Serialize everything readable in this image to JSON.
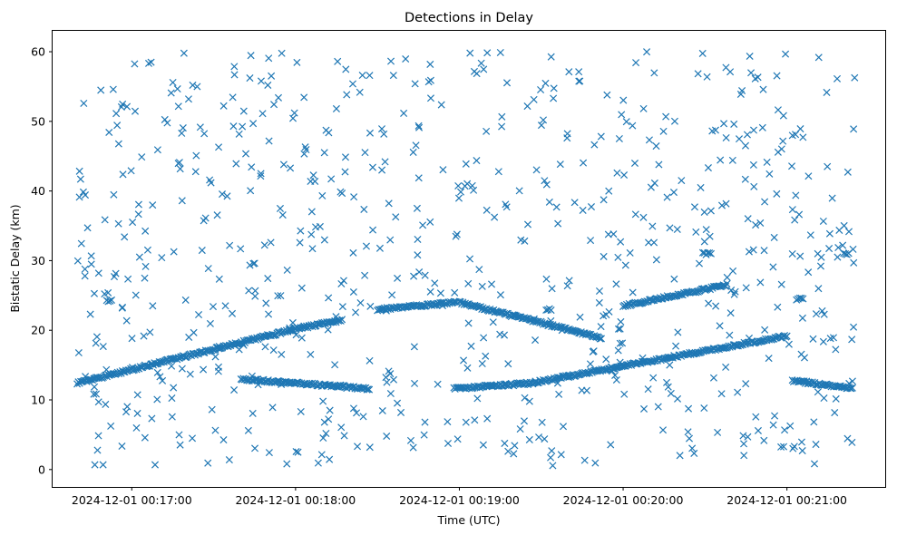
{
  "chart_data": {
    "type": "scatter",
    "title": "Detections in Delay",
    "xlabel": "Time (UTC)",
    "ylabel": "Bistatic Delay (km)",
    "x_ticks": [
      "2024-12-01 00:17:00",
      "2024-12-01 00:18:00",
      "2024-12-01 00:19:00",
      "2024-12-01 00:20:00",
      "2024-12-01 00:21:00"
    ],
    "y_ticks": [
      "0",
      "10",
      "20",
      "30",
      "40",
      "50",
      "60"
    ],
    "xlim": [
      "2024-12-01 00:16:31",
      "2024-12-01 00:21:36"
    ],
    "ylim": [
      -2.5,
      63
    ],
    "marker": "x",
    "color": "#1f77b4",
    "grid": false,
    "tracks": [
      {
        "from": [
          "2024-12-01 00:16:40",
          12.4
        ],
        "to": [
          "2024-12-01 00:17:58",
          20.0
        ]
      },
      {
        "from": [
          "2024-12-01 00:17:58",
          20.0
        ],
        "to": [
          "2024-12-01 00:18:17",
          21.5
        ]
      },
      {
        "from": [
          "2024-12-01 00:17:40",
          13.0
        ],
        "to": [
          "2024-12-01 00:18:27",
          11.6
        ]
      },
      {
        "from": [
          "2024-12-01 00:18:30",
          23.0
        ],
        "to": [
          "2024-12-01 00:18:59",
          24.0
        ]
      },
      {
        "from": [
          "2024-12-01 00:18:58",
          11.6
        ],
        "to": [
          "2024-12-01 00:19:26",
          12.4
        ]
      },
      {
        "from": [
          "2024-12-01 00:19:26",
          12.4
        ],
        "to": [
          "2024-12-01 00:21:00",
          19.2
        ]
      },
      {
        "from": [
          "2024-12-01 00:19:00",
          24.0
        ],
        "to": [
          "2024-12-01 00:19:52",
          18.9
        ]
      },
      {
        "from": [
          "2024-12-01 00:20:00",
          23.5
        ],
        "to": [
          "2024-12-01 00:20:38",
          26.5
        ]
      },
      {
        "from": [
          "2024-12-01 00:21:02",
          12.8
        ],
        "to": [
          "2024-12-01 00:21:24",
          11.6
        ]
      }
    ],
    "clusters": [
      {
        "x": "2024-12-01 00:20:31",
        "y": 31.0,
        "n": 6
      },
      {
        "x": "2024-12-01 00:21:05",
        "y": 24.5,
        "n": 5
      },
      {
        "x": "2024-12-01 00:21:22",
        "y": 31.0,
        "n": 4
      },
      {
        "x": "2024-12-01 00:19:33",
        "y": 23.0,
        "n": 4
      },
      {
        "x": "2024-12-01 00:16:52",
        "y": 24.2,
        "n": 4
      }
    ],
    "noise": {
      "count": 720,
      "x_range": [
        "2024-12-01 00:16:40",
        "2024-12-01 00:21:25"
      ],
      "y_range": [
        0.5,
        60
      ]
    }
  }
}
